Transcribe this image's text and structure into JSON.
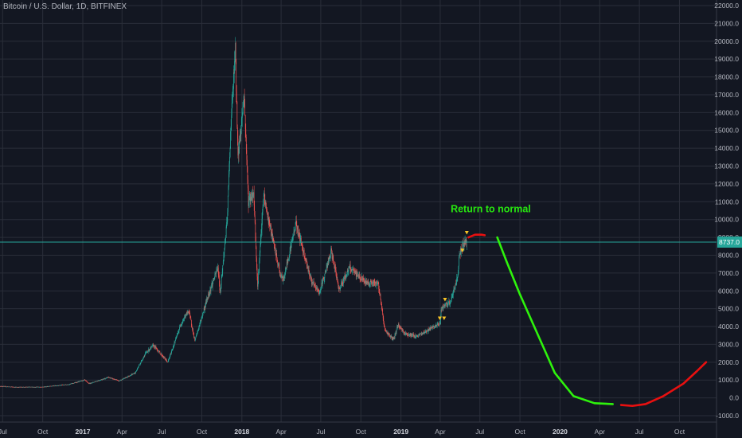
{
  "header": {
    "symbol_title": "Bitcoin / U.S. Dollar, 1D, BITFINEX"
  },
  "colors": {
    "background": "#131722",
    "grid": "#2a2e39",
    "axis_text": "#b2b5be",
    "candle_up": "#26a69a",
    "candle_down": "#ef5350",
    "price_line": "#26a69a",
    "price_label_bg": "#26a69a",
    "annotation_green": "#27e80f",
    "projection_green": "#2ef20c",
    "projection_red": "#e81010",
    "signal_marker": "#f7c325"
  },
  "chart_data": {
    "type": "candlestick",
    "y_axis": {
      "range": [
        -1000,
        22000
      ],
      "tick_values": [
        -1000,
        0,
        1000,
        2000,
        3000,
        4000,
        5000,
        6000,
        7000,
        8000,
        9000,
        10000,
        11000,
        12000,
        13000,
        14000,
        15000,
        16000,
        17000,
        18000,
        19000,
        20000,
        21000,
        22000
      ],
      "tick_labels": [
        "-1000.0",
        "0.0",
        "1000.0",
        "2000.0",
        "3000.0",
        "4000.0",
        "5000.0",
        "6000.0",
        "7000.0",
        "8000.0",
        "9000.0",
        "10000.0",
        "11000.0",
        "12000.0",
        "13000.0",
        "14000.0",
        "15000.0",
        "16000.0",
        "17000.0",
        "18000.0",
        "19000.0",
        "20000.0",
        "21000.0",
        "22000.0"
      ]
    },
    "x_axis": {
      "range": [
        "2016-06-25",
        "2020-12-25"
      ],
      "ticks": [
        {
          "date": "2016-07-01",
          "label": "Jul",
          "bold": false
        },
        {
          "date": "2016-10-01",
          "label": "Oct",
          "bold": false
        },
        {
          "date": "2017-01-01",
          "label": "2017",
          "bold": true
        },
        {
          "date": "2017-04-01",
          "label": "Apr",
          "bold": false
        },
        {
          "date": "2017-07-01",
          "label": "Jul",
          "bold": false
        },
        {
          "date": "2017-10-01",
          "label": "Oct",
          "bold": false
        },
        {
          "date": "2018-01-01",
          "label": "2018",
          "bold": true
        },
        {
          "date": "2018-04-01",
          "label": "Apr",
          "bold": false
        },
        {
          "date": "2018-07-01",
          "label": "Jul",
          "bold": false
        },
        {
          "date": "2018-10-01",
          "label": "Oct",
          "bold": false
        },
        {
          "date": "2019-01-01",
          "label": "2019",
          "bold": true
        },
        {
          "date": "2019-04-01",
          "label": "Apr",
          "bold": false
        },
        {
          "date": "2019-07-01",
          "label": "Jul",
          "bold": false
        },
        {
          "date": "2019-10-01",
          "label": "Oct",
          "bold": false
        },
        {
          "date": "2020-01-01",
          "label": "2020",
          "bold": true
        },
        {
          "date": "2020-04-01",
          "label": "Apr",
          "bold": false
        },
        {
          "date": "2020-07-01",
          "label": "Jul",
          "bold": false
        },
        {
          "date": "2020-10-01",
          "label": "Oct",
          "bold": false
        }
      ]
    },
    "current_price": {
      "value": 8737.0,
      "label": "8737.0"
    },
    "price_path": [
      [
        "2016-06-25",
        650
      ],
      [
        "2016-08-01",
        600
      ],
      [
        "2016-10-01",
        610
      ],
      [
        "2016-12-01",
        760
      ],
      [
        "2017-01-05",
        1000
      ],
      [
        "2017-01-15",
        800
      ],
      [
        "2017-03-01",
        1150
      ],
      [
        "2017-03-25",
        950
      ],
      [
        "2017-05-01",
        1400
      ],
      [
        "2017-05-25",
        2500
      ],
      [
        "2017-06-12",
        2950
      ],
      [
        "2017-07-15",
        2000
      ],
      [
        "2017-08-15",
        4200
      ],
      [
        "2017-09-01",
        4900
      ],
      [
        "2017-09-15",
        3200
      ],
      [
        "2017-10-15",
        5700
      ],
      [
        "2017-11-07",
        7300
      ],
      [
        "2017-11-12",
        5900
      ],
      [
        "2017-11-28",
        9900
      ],
      [
        "2017-12-07",
        15500
      ],
      [
        "2017-12-17",
        19500
      ],
      [
        "2017-12-23",
        13500
      ],
      [
        "2018-01-06",
        17000
      ],
      [
        "2018-01-16",
        11000
      ],
      [
        "2018-01-28",
        11500
      ],
      [
        "2018-02-06",
        6200
      ],
      [
        "2018-02-20",
        11400
      ],
      [
        "2018-02-28",
        10300
      ],
      [
        "2018-03-10",
        9200
      ],
      [
        "2018-03-30",
        6900
      ],
      [
        "2018-04-06",
        6600
      ],
      [
        "2018-05-05",
        9800
      ],
      [
        "2018-06-10",
        6500
      ],
      [
        "2018-06-28",
        5900
      ],
      [
        "2018-07-25",
        8200
      ],
      [
        "2018-08-12",
        6100
      ],
      [
        "2018-09-05",
        7300
      ],
      [
        "2018-10-10",
        6500
      ],
      [
        "2018-11-10",
        6400
      ],
      [
        "2018-11-25",
        3800
      ],
      [
        "2018-12-15",
        3250
      ],
      [
        "2018-12-25",
        4100
      ],
      [
        "2019-01-10",
        3600
      ],
      [
        "2019-02-07",
        3450
      ],
      [
        "2019-03-15",
        3950
      ],
      [
        "2019-04-01",
        4150
      ],
      [
        "2019-04-03",
        5000
      ],
      [
        "2019-04-25",
        5400
      ],
      [
        "2019-05-11",
        6800
      ],
      [
        "2019-05-15",
        8100
      ],
      [
        "2019-05-25",
        8700
      ],
      [
        "2019-06-01",
        8737
      ]
    ],
    "signal_markers": [
      {
        "date": "2019-03-31",
        "price": 4450
      },
      {
        "date": "2019-04-10",
        "price": 4450
      },
      {
        "date": "2019-04-12",
        "price": 5500
      },
      {
        "date": "2019-05-22",
        "price": 8250
      },
      {
        "date": "2019-06-01",
        "price": 9250
      }
    ],
    "annotations": [
      {
        "text": "Return to normal",
        "date": "2019-07-26",
        "price": 10400
      }
    ],
    "projections": [
      {
        "color": "red",
        "points": [
          [
            "2019-06-05",
            9000
          ],
          [
            "2019-06-20",
            9150
          ],
          [
            "2019-07-05",
            9150
          ],
          [
            "2019-07-12",
            9120
          ]
        ]
      },
      {
        "color": "green",
        "points": [
          [
            "2019-08-10",
            9000
          ],
          [
            "2019-09-01",
            7600
          ],
          [
            "2019-10-01",
            5800
          ],
          [
            "2019-11-10",
            3600
          ],
          [
            "2019-12-20",
            1400
          ],
          [
            "2020-02-01",
            100
          ],
          [
            "2020-03-20",
            -300
          ],
          [
            "2020-05-01",
            -350
          ]
        ]
      },
      {
        "color": "red",
        "points": [
          [
            "2020-05-20",
            -400
          ],
          [
            "2020-06-15",
            -450
          ],
          [
            "2020-07-15",
            -350
          ],
          [
            "2020-08-25",
            100
          ],
          [
            "2020-10-10",
            800
          ],
          [
            "2020-11-10",
            1500
          ],
          [
            "2020-12-01",
            2000
          ]
        ]
      }
    ]
  }
}
